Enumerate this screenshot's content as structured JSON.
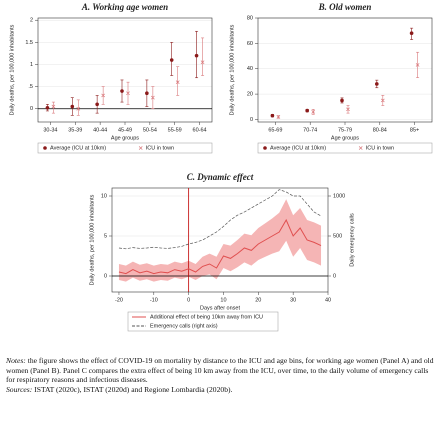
{
  "chart_data": [
    {
      "type": "errorbar",
      "title": "A. Working age women",
      "y_label": "Daily deaths, per 100,000 inhabitants",
      "x_label": "Age groups",
      "categories": [
        "30-34",
        "35-39",
        "40-44",
        "45-49",
        "50-54",
        "55-59",
        "60-64"
      ],
      "ylim": [
        -0.3,
        2.05
      ],
      "yticks": [
        0,
        {
          "value": 0.5,
          "label": ".5"
        },
        1,
        1.5,
        2
      ],
      "grid": true,
      "zero_line": true,
      "series": [
        {
          "name": "Average (ICU at 10km)",
          "color": "#8b1a1a",
          "marker": "dot",
          "values": [
            0.02,
            0.05,
            0.1,
            0.4,
            0.35,
            1.1,
            1.2
          ],
          "lower": [
            -0.05,
            -0.15,
            -0.1,
            0.15,
            0.05,
            0.75,
            0.7
          ],
          "upper": [
            0.1,
            0.25,
            0.3,
            0.65,
            0.65,
            1.5,
            1.75
          ]
        },
        {
          "name": "ICU in town",
          "color": "#d9777a",
          "marker": "x",
          "values": [
            0.05,
            0.0,
            0.3,
            0.35,
            0.25,
            0.6,
            1.05
          ],
          "lower": [
            -0.1,
            -0.15,
            0.1,
            0.1,
            0.0,
            0.3,
            0.75
          ],
          "upper": [
            0.15,
            0.2,
            0.5,
            0.6,
            0.5,
            0.95,
            1.6
          ]
        }
      ]
    },
    {
      "type": "errorbar",
      "title": "B. Old women",
      "y_label": "Daily deaths, per 100,000 inhabitants",
      "x_label": "Age groups",
      "categories": [
        "65-69",
        "70-74",
        "75-79",
        "80-84",
        "85+"
      ],
      "ylim": [
        -2,
        80
      ],
      "yticks": [
        0,
        20,
        40,
        60,
        80
      ],
      "grid": true,
      "zero_line": false,
      "series": [
        {
          "name": "Average (ICU at 10km)",
          "color": "#8b1a1a",
          "marker": "dot",
          "values": [
            3,
            7,
            15,
            28,
            68
          ],
          "lower": [
            2,
            6,
            13,
            25,
            63
          ],
          "upper": [
            4,
            8,
            17,
            31,
            72
          ]
        },
        {
          "name": "ICU in town",
          "color": "#d9777a",
          "marker": "x",
          "values": [
            2,
            6,
            8,
            15,
            43
          ],
          "lower": [
            1,
            4,
            5,
            11,
            33
          ],
          "upper": [
            3,
            8,
            11,
            19,
            53
          ]
        }
      ]
    },
    {
      "type": "line",
      "title": "C. Dynamic effect",
      "y_label": "Daily deaths, per 100,000 inhabitants",
      "y2_label": "Daily emergency calls",
      "x_label": "Days after onset",
      "x": [
        -20,
        -18,
        -16,
        -14,
        -12,
        -10,
        -8,
        -6,
        -4,
        -2,
        0,
        2,
        4,
        6,
        8,
        10,
        12,
        14,
        16,
        18,
        20,
        22,
        24,
        26,
        28,
        30,
        32,
        34,
        36,
        38
      ],
      "xlim": [
        -22,
        40
      ],
      "xticks": [
        -20,
        -10,
        0,
        10,
        20,
        30,
        40
      ],
      "ylim": [
        -2,
        11
      ],
      "yticks": [
        0,
        5,
        10
      ],
      "y2lim": [
        -200,
        1100
      ],
      "y2ticks": [
        0,
        500,
        1000
      ],
      "grid": true,
      "zero_line": true,
      "vline": 0,
      "series": [
        {
          "name": "Additional effect of being 10km away from ICU",
          "color": "#e05050",
          "band_color": "#f5b5b5",
          "values": [
            0.5,
            0.3,
            0.8,
            0.4,
            0.6,
            0.3,
            0.5,
            0.4,
            0.8,
            0.6,
            0.9,
            0.5,
            1.2,
            1.5,
            1.0,
            2.5,
            2.2,
            2.8,
            3.5,
            3.2,
            4.0,
            4.5,
            5.0,
            5.5,
            7.0,
            5.0,
            6.0,
            4.5,
            4.2,
            3.8
          ],
          "lower": [
            -0.5,
            -0.7,
            -0.2,
            -0.6,
            -0.4,
            -0.7,
            -0.5,
            -0.6,
            -0.2,
            -0.4,
            -0.1,
            -0.5,
            0.0,
            0.2,
            -0.4,
            1.0,
            0.6,
            1.1,
            1.7,
            1.3,
            2.0,
            2.4,
            2.8,
            3.1,
            4.4,
            2.4,
            3.5,
            2.0,
            1.7,
            1.3
          ],
          "upper": [
            1.5,
            1.3,
            1.8,
            1.4,
            1.6,
            1.3,
            1.5,
            1.4,
            1.8,
            1.6,
            1.9,
            1.5,
            2.4,
            2.8,
            2.4,
            4.0,
            3.8,
            4.5,
            5.3,
            5.1,
            6.0,
            6.6,
            7.2,
            7.9,
            9.6,
            7.6,
            8.5,
            7.0,
            6.7,
            6.3
          ]
        },
        {
          "name": "Emergency calls (right axis)",
          "color": "#555555",
          "dashed": true,
          "axis": "y2",
          "values": [
            350,
            340,
            355,
            345,
            350,
            360,
            350,
            345,
            355,
            370,
            400,
            420,
            450,
            500,
            550,
            620,
            700,
            760,
            800,
            850,
            900,
            950,
            1000,
            1080,
            1050,
            1000,
            1000,
            900,
            800,
            750
          ]
        }
      ]
    }
  ],
  "notes": {
    "label": "Notes:",
    "text": "the figure shows the effect of COVID-19 on mortality by distance to the ICU and age bins, for working age women (Panel A) and old women (Panel B). Panel C compares the extra effect of being 10 km away from the ICU, over time, to the daily volume of emergency calls for respiratory reasons and infectious diseases."
  },
  "sources": {
    "label": "Sources:",
    "text": "ISTAT (2020c), ISTAT (2020d) and Regione Lombardia (2020b)."
  }
}
